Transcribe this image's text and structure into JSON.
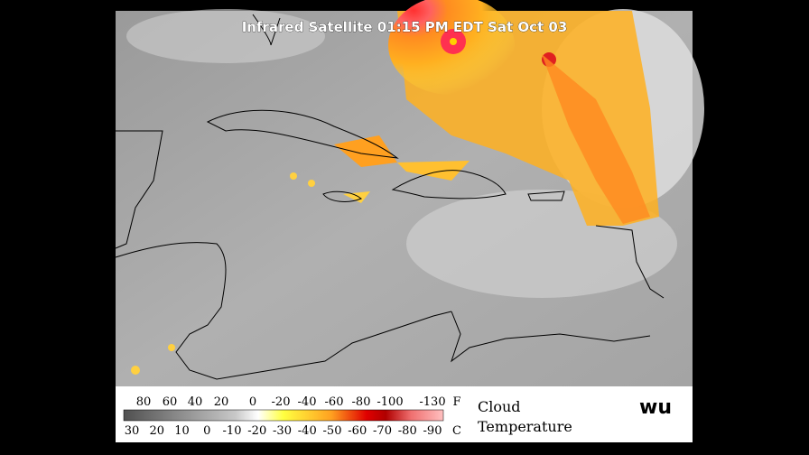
{
  "map": {
    "title": "Infrared Satellite 01:15 PM EDT Sat Oct 03",
    "legend": {
      "fahrenheit": [
        "80",
        "60",
        "40",
        "20",
        "0",
        "-20",
        "-40",
        "-60",
        "-80",
        "-100",
        "-130"
      ],
      "fahrenheit_unit": "F",
      "celsius": [
        "30",
        "20",
        "10",
        "0",
        "-10",
        "-20",
        "-30",
        "-40",
        "-50",
        "-60",
        "-70",
        "-80",
        "-90"
      ],
      "celsius_unit": "C",
      "caption_line1": "Cloud",
      "caption_line2": "Temperature",
      "logo": "wu"
    }
  }
}
